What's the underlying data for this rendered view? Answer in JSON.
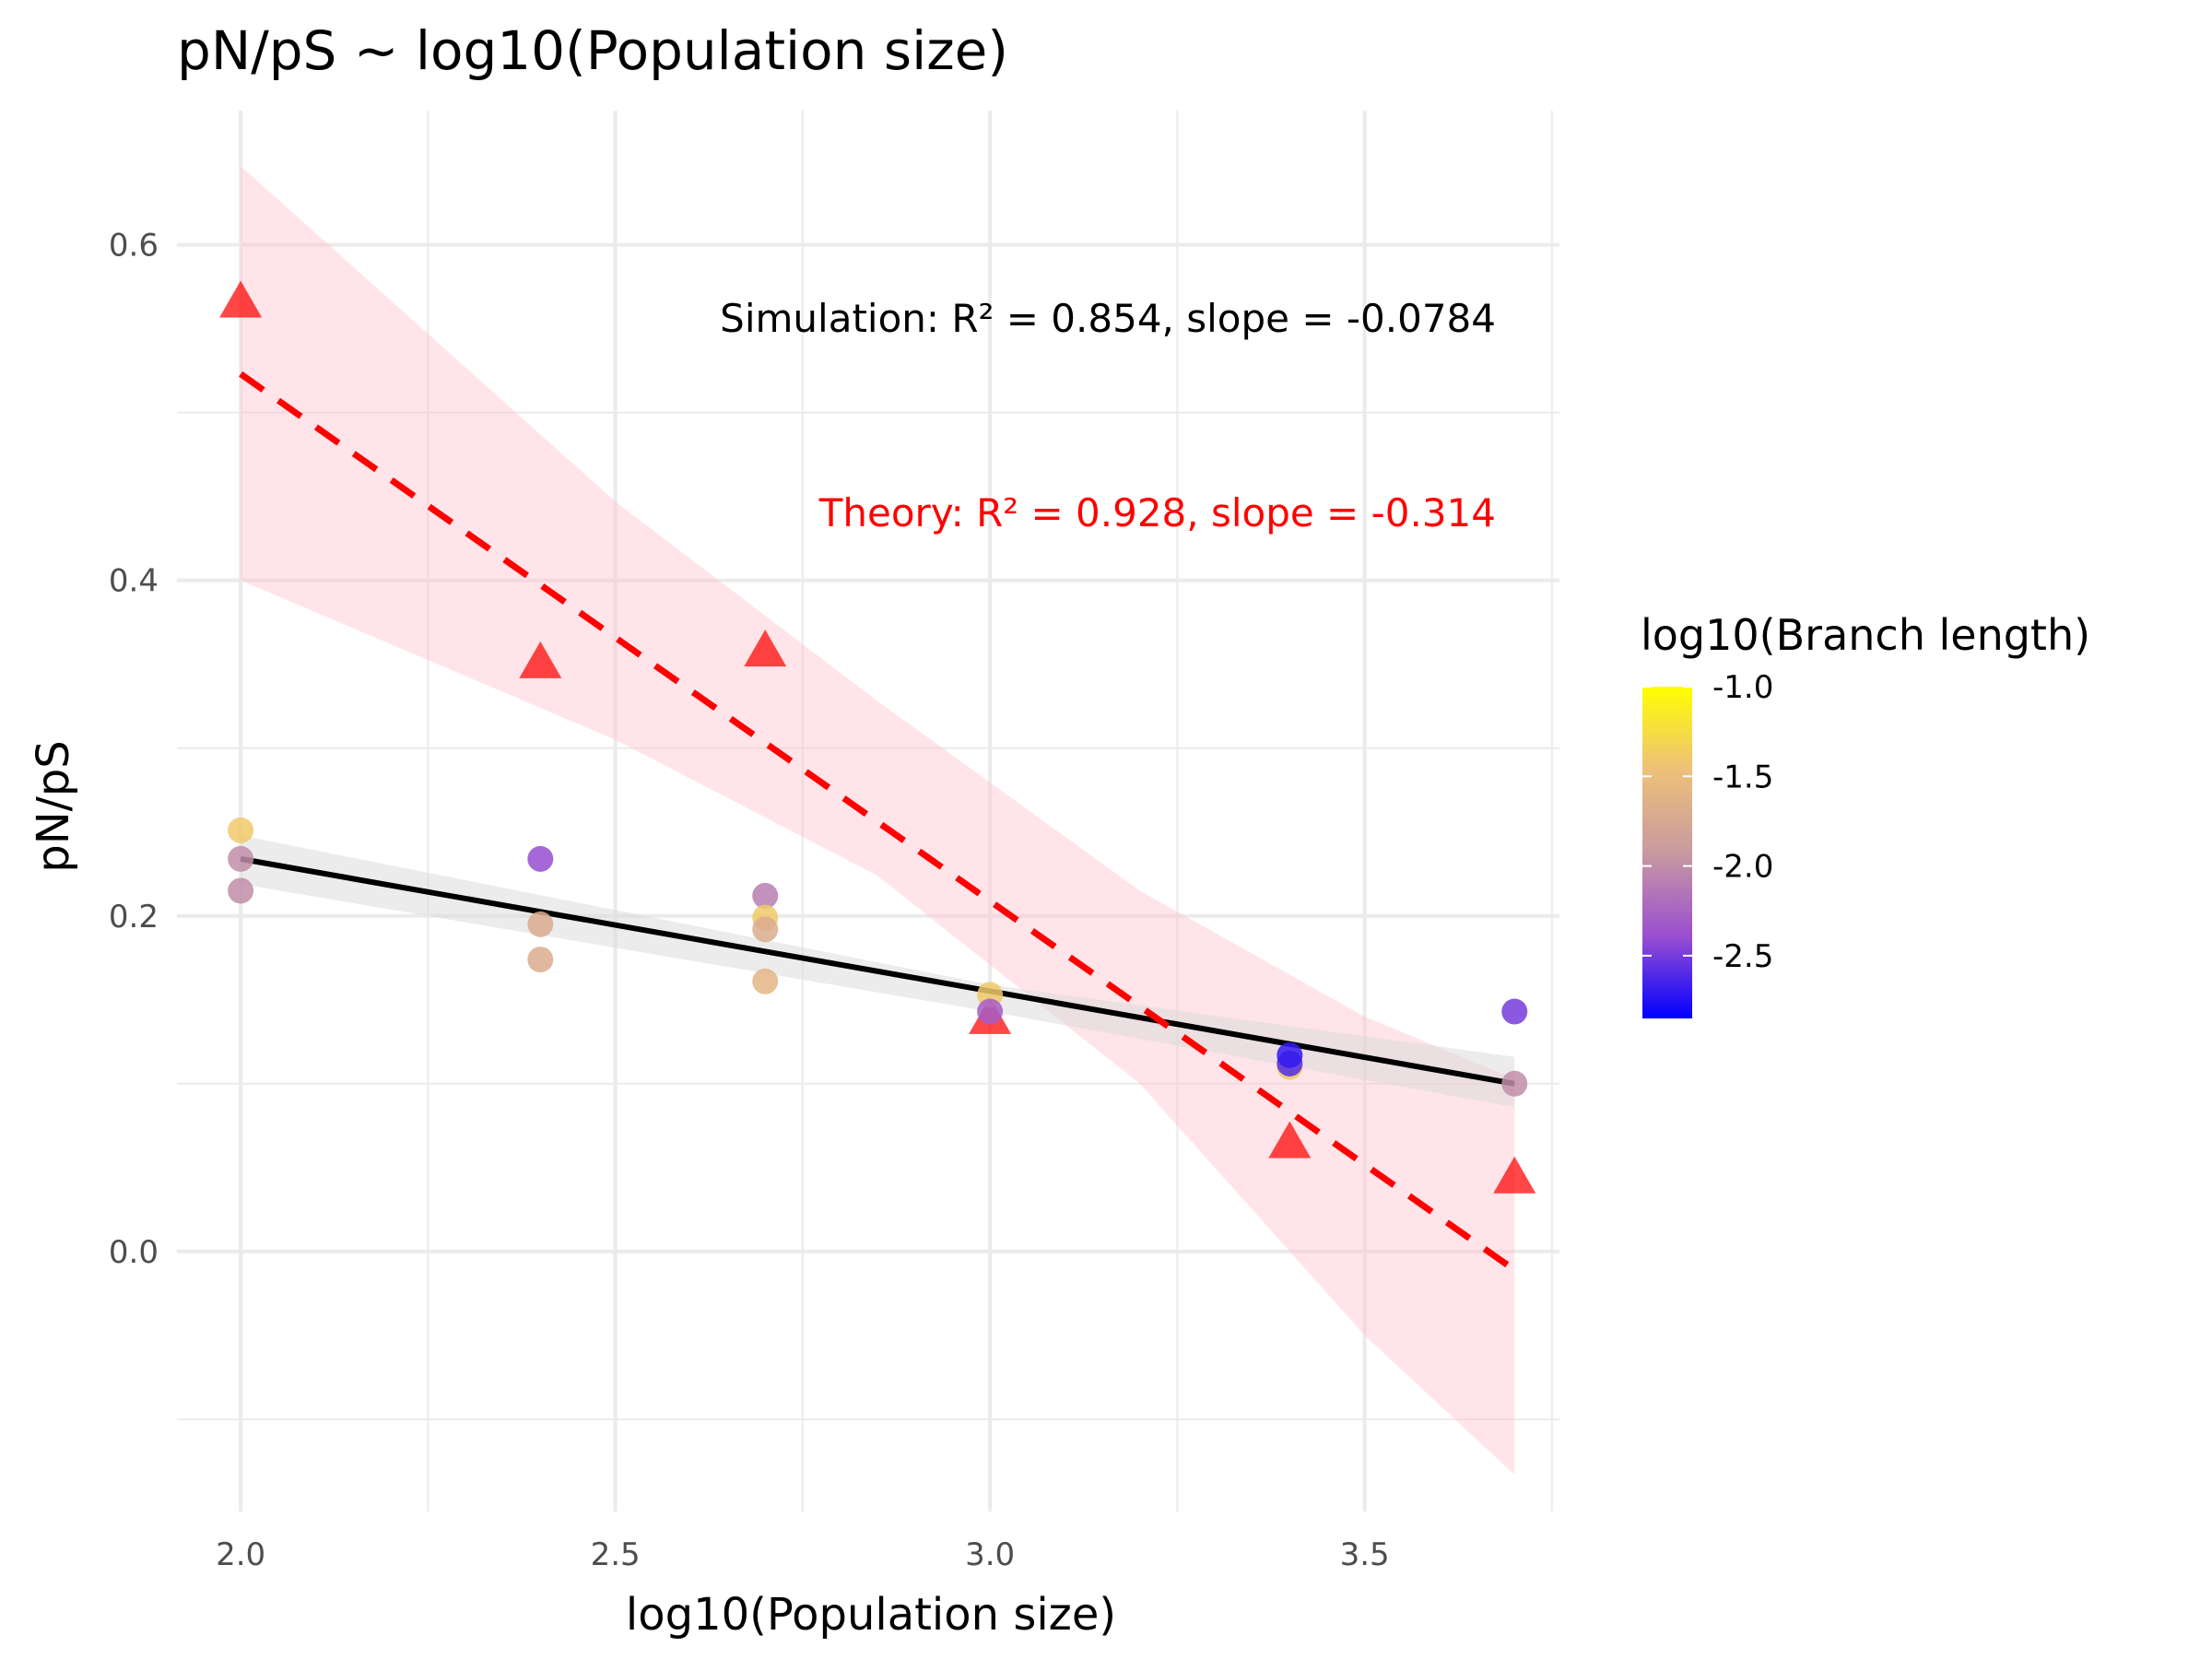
{
  "chart_data": {
    "type": "scatter",
    "title": "pN/pS ~ log10(Population size)",
    "xlabel": "log10(Population size)",
    "ylabel": "pN/pS",
    "xlim": [
      1.915,
      3.76
    ],
    "ylim": [
      -0.155,
      0.68
    ],
    "x_ticks": [
      2.0,
      2.5,
      3.0,
      3.5
    ],
    "x_tick_labels": [
      "2.0",
      "2.5",
      "3.0",
      "3.5"
    ],
    "y_ticks": [
      0.0,
      0.2,
      0.4,
      0.6
    ],
    "y_tick_labels": [
      "0.0",
      "0.2",
      "0.4",
      "0.6"
    ],
    "grid": true,
    "legend": {
      "title": "log10(Branch length)",
      "placement": "right",
      "type": "colorbar",
      "range": [
        -2.85,
        -1.0
      ],
      "ticks": [
        -1.0,
        -1.5,
        -2.0,
        -2.5
      ],
      "tick_labels": [
        "-1.0",
        "-1.5",
        "-2.0",
        "-2.5"
      ],
      "colors": [
        "#0000ff",
        "#9b4fd0",
        "#c89aa0",
        "#eec07a",
        "#ffff00"
      ]
    },
    "series": [
      {
        "marker": "circle",
        "points": [
          {
            "x": 2.0,
            "y": 0.251,
            "c": -1.4
          },
          {
            "x": 2.0,
            "y": 0.234,
            "c": -2.0
          },
          {
            "x": 2.0,
            "y": 0.215,
            "c": -2.0
          },
          {
            "x": 2.4,
            "y": 0.234,
            "c": -2.4
          },
          {
            "x": 2.4,
            "y": 0.195,
            "c": -1.7
          },
          {
            "x": 2.4,
            "y": 0.174,
            "c": -1.7
          },
          {
            "x": 2.7,
            "y": 0.212,
            "c": -2.1
          },
          {
            "x": 2.7,
            "y": 0.199,
            "c": -1.4
          },
          {
            "x": 2.7,
            "y": 0.192,
            "c": -1.7
          },
          {
            "x": 2.7,
            "y": 0.161,
            "c": -1.6
          },
          {
            "x": 3.0,
            "y": 0.153,
            "c": -1.4
          },
          {
            "x": 3.0,
            "y": 0.143,
            "c": -2.3
          },
          {
            "x": 3.4,
            "y": 0.11,
            "c": -1.4
          },
          {
            "x": 3.4,
            "y": 0.112,
            "c": -2.6
          },
          {
            "x": 3.4,
            "y": 0.117,
            "c": -2.7
          },
          {
            "x": 3.7,
            "y": 0.143,
            "c": -2.5
          },
          {
            "x": 3.7,
            "y": 0.1,
            "c": -2.0
          }
        ],
        "fit": {
          "style": "solid",
          "color": "#000000",
          "x": [
            2.0,
            3.7
          ],
          "y": [
            0.234,
            0.1
          ]
        },
        "ribbon": {
          "color": "#d9d9d9",
          "x": [
            2.0,
            3.0,
            3.7
          ],
          "upper": [
            0.248,
            0.159,
            0.116
          ],
          "lower": [
            0.219,
            0.143,
            0.086
          ]
        }
      },
      {
        "marker": "triangle",
        "color": "#ff0000",
        "points": [
          {
            "x": 2.0,
            "y": 0.565
          },
          {
            "x": 2.4,
            "y": 0.35
          },
          {
            "x": 2.7,
            "y": 0.357
          },
          {
            "x": 3.0,
            "y": 0.138
          },
          {
            "x": 3.4,
            "y": 0.064
          },
          {
            "x": 3.7,
            "y": 0.043
          }
        ],
        "fit": {
          "style": "dashed",
          "color": "#ff0000",
          "x": [
            2.0,
            3.7
          ],
          "y": [
            0.523,
            -0.011
          ]
        },
        "ribbon": {
          "color": "#ffc0cb",
          "x": [
            2.0,
            2.5,
            2.85,
            3.2,
            3.5,
            3.7
          ],
          "upper": [
            0.647,
            0.447,
            0.328,
            0.215,
            0.14,
            0.103
          ],
          "lower": [
            0.4,
            0.305,
            0.224,
            0.1,
            -0.05,
            -0.133
          ]
        }
      }
    ],
    "annotations": [
      {
        "text": "Simulation: R² = 0.854, slope = -0.0784",
        "color": "#000000"
      },
      {
        "text": "Theory: R² = 0.928, slope = -0.314",
        "color": "#ff0000"
      }
    ]
  }
}
